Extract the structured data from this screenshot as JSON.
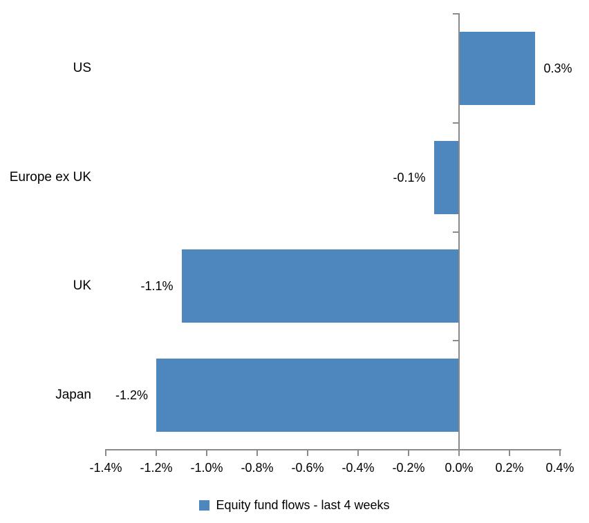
{
  "chart_data": {
    "type": "bar",
    "orientation": "horizontal",
    "categories": [
      "US",
      "Europe ex UK",
      "UK",
      "Japan"
    ],
    "series": [
      {
        "name": "Equity fund flows - last 4 weeks",
        "values": [
          0.3,
          -0.1,
          -1.1,
          -1.2
        ],
        "value_labels": [
          "0.3%",
          "-0.1%",
          "-1.1%",
          "-1.2%"
        ]
      }
    ],
    "series_name": "Equity fund flows - last 4 weeks",
    "unit": "%",
    "xlim": [
      -1.4,
      0.4
    ],
    "x_tick_values": [
      -1.4,
      -1.2,
      -1.0,
      -0.8,
      -0.6,
      -0.4,
      -0.2,
      0.0,
      0.2,
      0.4
    ],
    "x_tick_labels": [
      "-1.4%",
      "-1.2%",
      "-1.0%",
      "-0.8%",
      "-0.6%",
      "-0.4%",
      "-0.2%",
      "0.0%",
      "0.2%",
      "0.4%"
    ],
    "grid": false,
    "legend_position": "bottom"
  },
  "legend": {
    "items": [
      {
        "label": "Equity fund flows - last 4 weeks",
        "color": "#4E86BE"
      }
    ]
  },
  "colors": {
    "bar": "#4E86BE",
    "axis": "#8A8A8A",
    "text": "#000000",
    "background": "#FFFFFF"
  }
}
